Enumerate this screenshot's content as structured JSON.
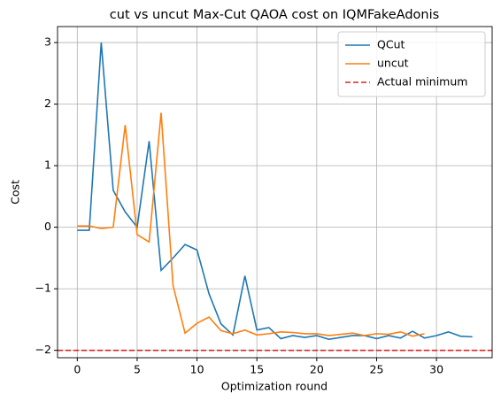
{
  "chart_data": {
    "type": "line",
    "title": "cut vs uncut Max-Cut QAOA cost on IQMFakeAdonis",
    "x_label": "Optimization round",
    "y_label": "Cost",
    "series": [
      {
        "name": "QCut",
        "color": "#1f77b4",
        "x": [
          0,
          1,
          2,
          3,
          4,
          5,
          6,
          7,
          8,
          9,
          10,
          11,
          12,
          13,
          14,
          15,
          16,
          17,
          18,
          19,
          20,
          21,
          22,
          23,
          24,
          25,
          26,
          27,
          28,
          29,
          30,
          31,
          32,
          33
        ],
        "values": [
          -0.05,
          -0.05,
          3.0,
          0.6,
          0.25,
          0.0,
          1.4,
          -0.7,
          -0.5,
          -0.28,
          -0.37,
          -1.08,
          -1.57,
          -1.75,
          -0.79,
          -1.67,
          -1.63,
          -1.81,
          -1.76,
          -1.79,
          -1.76,
          -1.82,
          -1.79,
          -1.76,
          -1.76,
          -1.81,
          -1.76,
          -1.8,
          -1.69,
          -1.8,
          -1.76,
          -1.7,
          -1.77,
          -1.78
        ]
      },
      {
        "name": "uncut",
        "color": "#ff7f0e",
        "x": [
          0,
          1,
          2,
          3,
          4,
          5,
          6,
          7,
          8,
          9,
          10,
          11,
          12,
          13,
          14,
          15,
          16,
          17,
          18,
          19,
          20,
          21,
          22,
          23,
          24,
          25,
          26,
          27,
          28,
          29
        ],
        "values": [
          0.02,
          0.02,
          -0.02,
          0.0,
          1.66,
          -0.12,
          -0.24,
          1.86,
          -0.95,
          -1.72,
          -1.56,
          -1.46,
          -1.68,
          -1.73,
          -1.67,
          -1.75,
          -1.73,
          -1.7,
          -1.71,
          -1.73,
          -1.73,
          -1.76,
          -1.74,
          -1.72,
          -1.76,
          -1.73,
          -1.74,
          -1.7,
          -1.77,
          -1.73
        ]
      }
    ],
    "hlines": [
      {
        "name": "Actual minimum",
        "color": "#d62728",
        "value": -2
      }
    ],
    "xlim": [
      -1.65,
      34.65
    ],
    "xticks": [
      0,
      5,
      10,
      15,
      20,
      25,
      30
    ],
    "ylim": [
      -2.12,
      3.26
    ],
    "yticks": [
      {
        "value": -2,
        "label": "−2"
      },
      {
        "value": -1,
        "label": "−1"
      },
      0,
      1,
      2,
      3
    ],
    "grid": true,
    "legend": "upper-right"
  }
}
